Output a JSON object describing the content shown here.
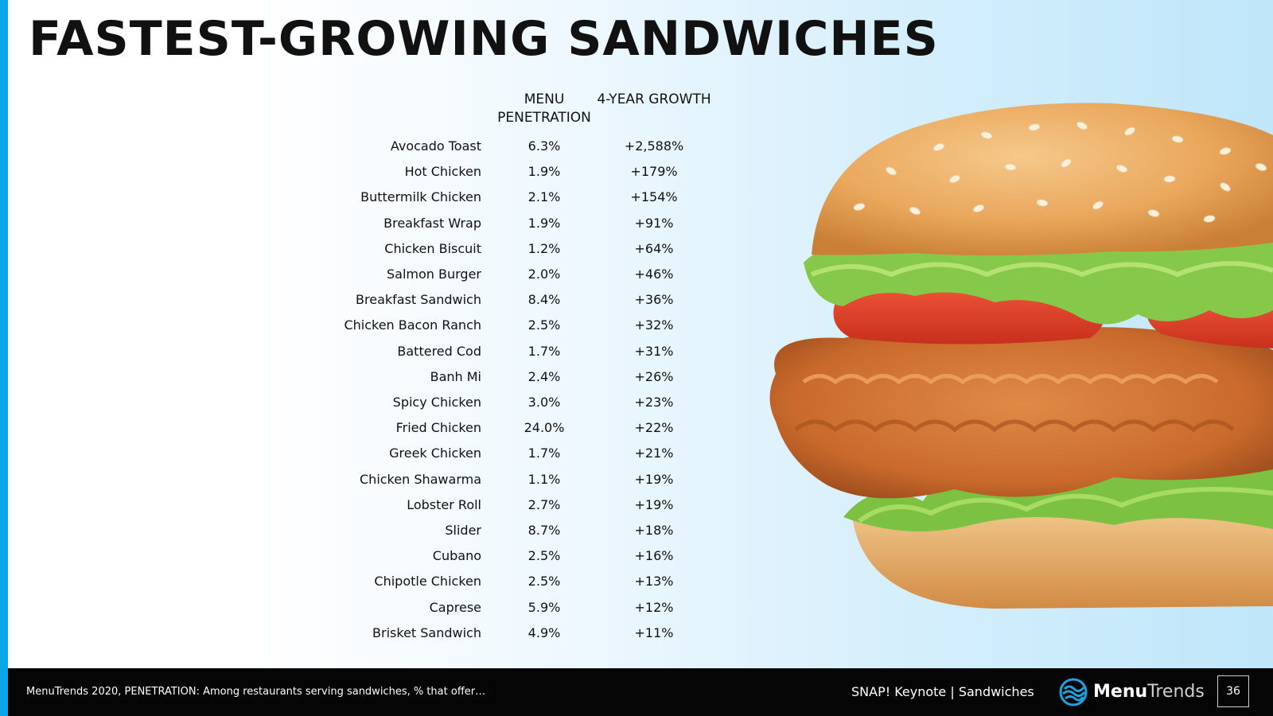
{
  "title": "FASTEST-GROWING SANDWICHES",
  "table": {
    "headers": {
      "penetration": "MENU PENETRATION",
      "growth": "4-YEAR GROWTH"
    },
    "rows": [
      {
        "name": "Avocado Toast",
        "penetration": "6.3%",
        "growth": "+2,588%"
      },
      {
        "name": "Hot Chicken",
        "penetration": "1.9%",
        "growth": "+179%"
      },
      {
        "name": "Buttermilk Chicken",
        "penetration": "2.1%",
        "growth": "+154%"
      },
      {
        "name": "Breakfast Wrap",
        "penetration": "1.9%",
        "growth": "+91%"
      },
      {
        "name": "Chicken Biscuit",
        "penetration": "1.2%",
        "growth": "+64%"
      },
      {
        "name": "Salmon Burger",
        "penetration": "2.0%",
        "growth": "+46%"
      },
      {
        "name": "Breakfast Sandwich",
        "penetration": "8.4%",
        "growth": "+36%"
      },
      {
        "name": "Chicken Bacon Ranch",
        "penetration": "2.5%",
        "growth": "+32%"
      },
      {
        "name": "Battered Cod",
        "penetration": "1.7%",
        "growth": "+31%"
      },
      {
        "name": "Banh Mi",
        "penetration": "2.4%",
        "growth": "+26%"
      },
      {
        "name": "Spicy Chicken",
        "penetration": "3.0%",
        "growth": "+23%"
      },
      {
        "name": "Fried Chicken",
        "penetration": "24.0%",
        "growth": "+22%"
      },
      {
        "name": "Greek Chicken",
        "penetration": "1.7%",
        "growth": "+21%"
      },
      {
        "name": "Chicken Shawarma",
        "penetration": "1.1%",
        "growth": "+19%"
      },
      {
        "name": "Lobster Roll",
        "penetration": "2.7%",
        "growth": "+19%"
      },
      {
        "name": "Slider",
        "penetration": "8.7%",
        "growth": "+18%"
      },
      {
        "name": "Cubano",
        "penetration": "2.5%",
        "growth": "+16%"
      },
      {
        "name": "Chipotle Chicken",
        "penetration": "2.5%",
        "growth": "+13%"
      },
      {
        "name": "Caprese",
        "penetration": "5.9%",
        "growth": "+12%"
      },
      {
        "name": "Brisket Sandwich",
        "penetration": "4.9%",
        "growth": "+11%"
      }
    ]
  },
  "footer": {
    "footnote": "MenuTrends 2020, PENETRATION: Among restaurants serving sandwiches, % that offer…",
    "deck": "SNAP! Keynote | Sandwiches",
    "logo_bold": "Menu",
    "logo_light": "Trends",
    "page_number": "36"
  },
  "image": {
    "subject": "fried-chicken-burger-image"
  },
  "colors": {
    "accent_bar": "#0aa6e8",
    "footer_bg": "#050505",
    "background_gradient_end": "#bfe6fa"
  }
}
